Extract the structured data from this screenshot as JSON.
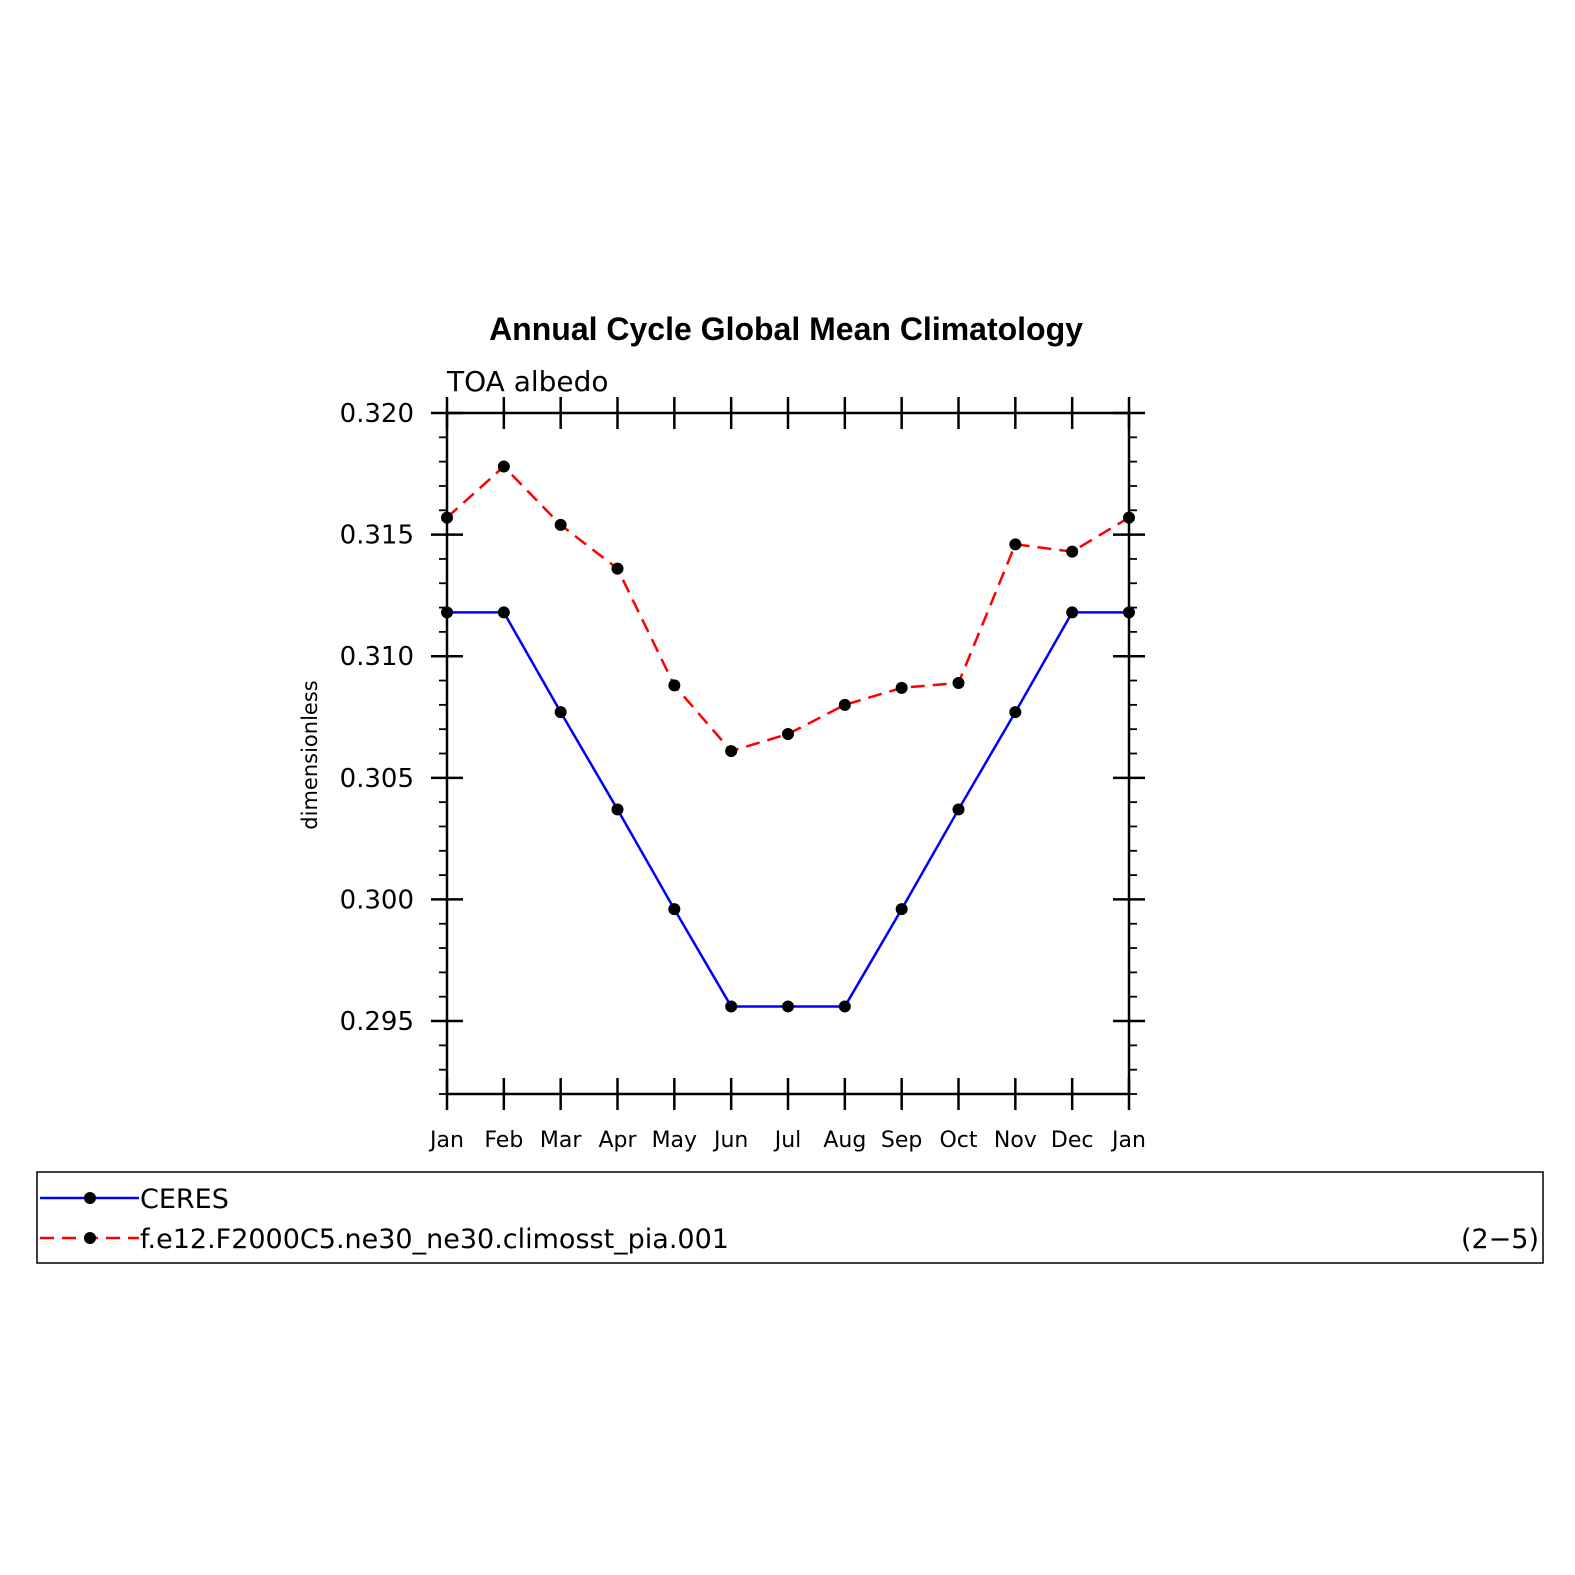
{
  "chart_data": {
    "type": "line",
    "title": "Annual Cycle Global Mean Climatology",
    "subtitle": "TOA albedo",
    "ylabel": "dimensionless",
    "xlabel": "",
    "categories": [
      "Jan",
      "Feb",
      "Mar",
      "Apr",
      "May",
      "Jun",
      "Jul",
      "Aug",
      "Sep",
      "Oct",
      "Nov",
      "Dec",
      "Jan"
    ],
    "ylim": [
      0.292,
      0.32
    ],
    "yticks": [
      "0.320",
      "0.315",
      "0.310",
      "0.305",
      "0.300",
      "0.295"
    ],
    "ytick_values": [
      0.32,
      0.315,
      0.31,
      0.305,
      0.3,
      0.295
    ],
    "grid": false,
    "legend_position": "bottom",
    "series": [
      {
        "name": "CERES",
        "color": "#0000ff",
        "dash": "solid",
        "values": [
          0.3118,
          0.3118,
          0.3077,
          0.3037,
          0.2996,
          0.2956,
          0.2956,
          0.2956,
          0.2996,
          0.3037,
          0.3077,
          0.3118,
          0.3118
        ]
      },
      {
        "name": "f.e12.F2000C5.ne30_ne30.climosst_pia.001",
        "color": "#ff0000",
        "dash": "dashed",
        "values": [
          0.3157,
          0.3178,
          0.3154,
          0.3136,
          0.3088,
          0.3061,
          0.3068,
          0.308,
          0.3087,
          0.3089,
          0.3146,
          0.3143,
          0.3157
        ]
      }
    ],
    "annotation": "(2−5)"
  }
}
